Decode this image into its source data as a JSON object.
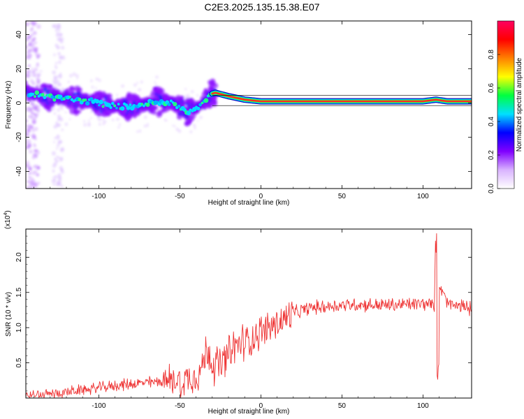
{
  "title": "C2E3.2025.135.15.38.E07",
  "chart_data": [
    {
      "type": "heatmap",
      "description_id": "spectrogram",
      "xlabel": "Height of straight line (km)",
      "ylabel": "Frequency (Hz)",
      "xlim": [
        -145,
        130
      ],
      "ylim": [
        -50,
        48
      ],
      "x_ticks": [
        -100,
        -50,
        0,
        50,
        100
      ],
      "y_ticks": [
        -40,
        -20,
        0,
        20,
        40
      ],
      "colorbar": {
        "label": "Normalized spectral amplitude",
        "range": [
          0,
          1
        ],
        "ticks": [
          0.0,
          0.2,
          0.4,
          0.6,
          0.8
        ],
        "colors": [
          "#ffffff",
          "#d9b3ff",
          "#8000ff",
          "#0000ff",
          "#00e0ff",
          "#00ff40",
          "#ffff00",
          "#ff8000",
          "#ff0000",
          "#ff0060"
        ]
      },
      "centerline": [
        [
          -145,
          6
        ],
        [
          -135,
          4
        ],
        [
          -125,
          3
        ],
        [
          -115,
          2
        ],
        [
          -105,
          1
        ],
        [
          -95,
          -1
        ],
        [
          -85,
          -2
        ],
        [
          -75,
          -2
        ],
        [
          -65,
          1
        ],
        [
          -55,
          0
        ],
        [
          -45,
          -5
        ],
        [
          -38,
          -2
        ],
        [
          -32,
          5
        ],
        [
          -28,
          6
        ],
        [
          -20,
          4
        ],
        [
          -10,
          2
        ],
        [
          0,
          1
        ],
        [
          10,
          1
        ],
        [
          20,
          1
        ],
        [
          40,
          1
        ],
        [
          60,
          1
        ],
        [
          80,
          1
        ],
        [
          100,
          1
        ],
        [
          108,
          2
        ],
        [
          115,
          1
        ],
        [
          130,
          1
        ]
      ]
    },
    {
      "type": "line",
      "description_id": "snr",
      "xlabel": "Height of straight line (km)",
      "ylabel": "SNR (10 * v/v)",
      "multiplier_label": "(x10",
      "multiplier_exp": "4",
      "multiplier_close": ")",
      "xlim": [
        -145,
        130
      ],
      "ylim": [
        0,
        2.4
      ],
      "x_ticks": [
        -100,
        -50,
        0,
        50,
        100
      ],
      "y_ticks": [
        0.5,
        1.0,
        1.5,
        2.0
      ],
      "y_tick_labels": [
        "0.5",
        "1.0",
        "1.5",
        "2.0"
      ],
      "series": [
        {
          "color": "#ee3333",
          "x": [
            -145,
            -135,
            -125,
            -115,
            -105,
            -95,
            -85,
            -75,
            -65,
            -55,
            -45,
            -38,
            -35,
            -32,
            -30,
            -25,
            -20,
            -15,
            -10,
            -5,
            0,
            10,
            20,
            30,
            40,
            50,
            60,
            70,
            80,
            90,
            100,
            105,
            107,
            108,
            109,
            110,
            115,
            120,
            125,
            130
          ],
          "values": [
            0.03,
            0.05,
            0.07,
            0.1,
            0.13,
            0.16,
            0.19,
            0.21,
            0.23,
            0.25,
            0.28,
            0.35,
            0.55,
            0.7,
            0.5,
            0.45,
            0.6,
            0.75,
            0.8,
            0.85,
            0.95,
            1.05,
            1.2,
            1.28,
            1.3,
            1.32,
            1.33,
            1.32,
            1.32,
            1.33,
            1.34,
            1.33,
            1.3,
            2.35,
            0.2,
            1.6,
            1.35,
            1.3,
            1.3,
            1.28
          ]
        }
      ]
    }
  ]
}
